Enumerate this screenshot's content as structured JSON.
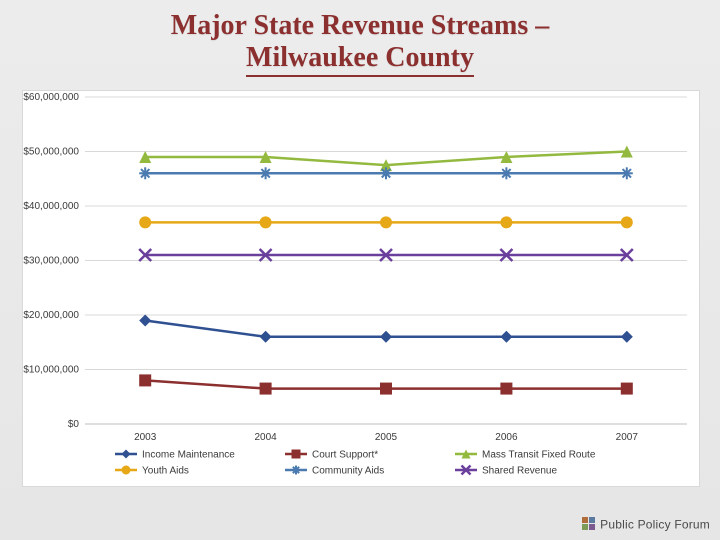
{
  "title_line1": "Major State Revenue Streams –",
  "title_line2": "Milwaukee County",
  "chart": {
    "type": "line",
    "background_color": "#ffffff",
    "plot_border_color": "#bfbfbf",
    "grid_color": "#d9d9d9",
    "axis_label_color": "#3a3a3a",
    "axis_fontsize": 10,
    "x_categories": [
      "2003",
      "2004",
      "2005",
      "2006",
      "2007"
    ],
    "ylim": [
      0,
      60000000
    ],
    "ytick_step": 10000000,
    "ytick_labels": [
      "$0",
      "$10,000,000",
      "$20,000,000",
      "$30,000,000",
      "$40,000,000",
      "$50,000,000",
      "$60,000,000"
    ],
    "line_width": 2.5,
    "marker_size": 6,
    "series": [
      {
        "name": "Income Maintenance",
        "color": "#2f5091",
        "marker": "diamond",
        "values": [
          19000000,
          16000000,
          16000000,
          16000000,
          16000000
        ]
      },
      {
        "name": "Court Support*",
        "color": "#8b2f2f",
        "marker": "square",
        "values": [
          8000000,
          6500000,
          6500000,
          6500000,
          6500000
        ]
      },
      {
        "name": "Mass Transit Fixed Route",
        "color": "#93b93f",
        "marker": "triangle",
        "values": [
          49000000,
          49000000,
          47500000,
          49000000,
          50000000
        ]
      },
      {
        "name": "Youth Aids",
        "color": "#e6a817",
        "marker": "circle",
        "values": [
          37000000,
          37000000,
          37000000,
          37000000,
          37000000
        ]
      },
      {
        "name": "Community Aids",
        "color": "#4a7ab0",
        "marker": "star",
        "values": [
          46000000,
          46000000,
          46000000,
          46000000,
          46000000
        ]
      },
      {
        "name": "Shared Revenue",
        "color": "#6b3f9c",
        "marker": "x",
        "values": [
          31000000,
          31000000,
          31000000,
          31000000,
          31000000
        ]
      }
    ],
    "legend": {
      "fontsize": 10,
      "line_length": 22,
      "layout": [
        [
          "Income Maintenance",
          "Court Support*",
          "Mass Transit Fixed Route"
        ],
        [
          "Youth Aids",
          "Community Aids",
          "Shared Revenue"
        ]
      ]
    }
  },
  "logo_text": "Public Policy Forum"
}
